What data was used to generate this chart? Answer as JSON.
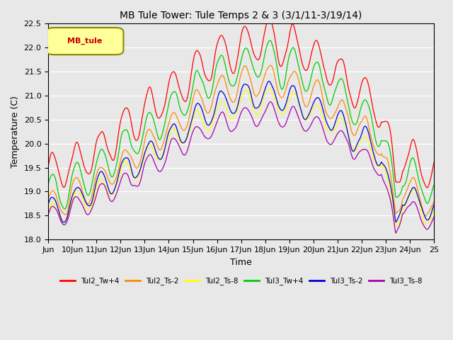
{
  "title": "MB Tule Tower: Tule Temps 2 & 3 (3/1/11-3/19/14)",
  "xlabel": "Time",
  "ylabel": "Temperature (C)",
  "ylim": [
    18.0,
    22.5
  ],
  "xlim": [
    0,
    16
  ],
  "xtick_positions": [
    0,
    1,
    2,
    3,
    4,
    5,
    6,
    7,
    8,
    9,
    10,
    11,
    12,
    13,
    14,
    15,
    16
  ],
  "xtick_labels": [
    "Jun",
    "10Jun",
    "11Jun",
    "12Jun",
    "13Jun",
    "14Jun",
    "15Jun",
    "16Jun",
    "17Jun",
    "18Jun",
    "19Jun",
    "20Jun",
    "21Jun",
    "22Jun",
    "23Jun",
    "24Jun",
    "25"
  ],
  "legend_label": "MB_tule",
  "series": [
    {
      "name": "Tul2_Tw+4",
      "color": "#FF0000"
    },
    {
      "name": "Tul2_Ts-2",
      "color": "#FF8800"
    },
    {
      "name": "Tul2_Ts-8",
      "color": "#FFFF00"
    },
    {
      "name": "Tul3_Tw+4",
      "color": "#00CC00"
    },
    {
      "name": "Tul3_Ts-2",
      "color": "#0000CC"
    },
    {
      "name": "Tul3_Ts-8",
      "color": "#AA00AA"
    }
  ],
  "bg_color": "#E8E8E8"
}
